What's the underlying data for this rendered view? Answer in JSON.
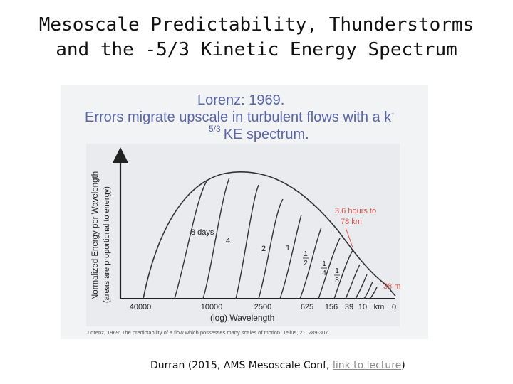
{
  "slide": {
    "title_line1": "Mesoscale Predictability, Thunderstorms",
    "title_line2": "and the -5/3 Kinetic Energy Spectrum"
  },
  "figure": {
    "heading_line1": "Lorenz: 1969.",
    "heading_line2": "Errors migrate upscale in turbulent flows with a k",
    "heading_sup": "-",
    "heading_line3_sup": "5/3",
    "heading_line3": "KE spectrum.",
    "ylabel": "Normalized Energy per Wavelength",
    "ylabel_sub": "(areas are proportional to energy)",
    "xlabel": "(log)  Wavelength",
    "x_tick_labels": [
      "40000",
      "10000",
      "2500",
      "625",
      "156",
      "39",
      "10",
      "km",
      "0"
    ],
    "curve_labels": {
      "eight_days": "8 days",
      "four": "4",
      "two": "2",
      "one": "1",
      "half_num": "1",
      "half_den": "2",
      "quarter_num": "1",
      "quarter_den": "4",
      "eighth_num": "1",
      "eighth_den": "8"
    },
    "annotation_line1": "3.6 hours to",
    "annotation_line2": "78 km",
    "annotation_38m": "38 m",
    "caption": "Lorenz, 1969: The predictability of a flow which possesses many scales of motion. Tellus, 21, 289-307",
    "colors": {
      "heading": "#5a66a8",
      "annotation": "#d9534f",
      "curves": "#333333"
    }
  },
  "credit": {
    "prefix": "Durran (2015, AMS Mesoscale Conf, ",
    "link_text": "link to lecture",
    "suffix": ")"
  }
}
